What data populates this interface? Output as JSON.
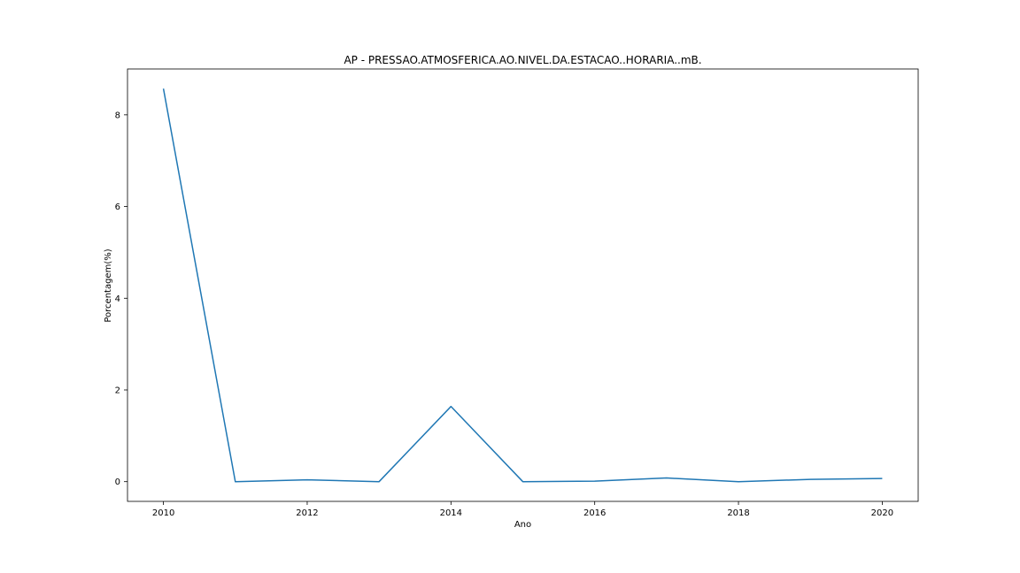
{
  "chart_data": {
    "type": "line",
    "title": "AP - PRESSAO.ATMOSFERICA.AO.NIVEL.DA.ESTACAO..HORARIA..mB.",
    "xlabel": "Ano",
    "ylabel": "Porcentagem(%)",
    "x": [
      2010,
      2011,
      2012,
      2013,
      2014,
      2015,
      2016,
      2017,
      2018,
      2019,
      2020
    ],
    "series": [
      {
        "values": [
          8.57,
          0.0,
          0.04,
          0.0,
          1.64,
          0.0,
          0.01,
          0.08,
          0.0,
          0.05,
          0.07
        ]
      }
    ],
    "xlim": [
      2009.5,
      2020.5
    ],
    "ylim": [
      -0.43,
      9.0
    ],
    "xticks": [
      2010,
      2012,
      2014,
      2016,
      2018,
      2020
    ],
    "yticks": [
      0,
      2,
      4,
      6,
      8
    ],
    "grid": false,
    "line_color": "#1f77b4"
  }
}
